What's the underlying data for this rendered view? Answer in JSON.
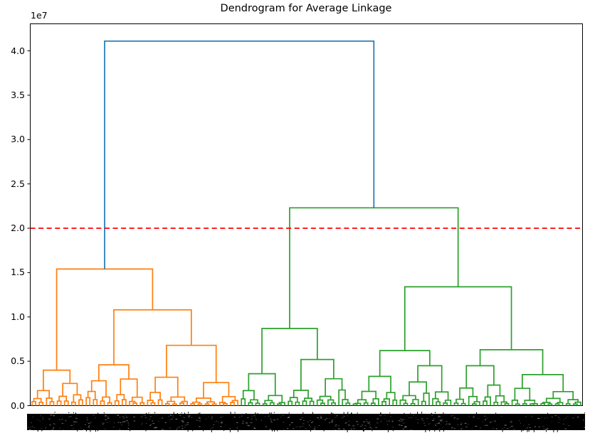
{
  "chart_data": {
    "type": "dendrogram",
    "title": "Dendrogram for Average Linkage",
    "y_axis": {
      "offset_label": "1e7",
      "unit_scale": 10000000,
      "ticks": [
        0.0,
        0.5,
        1.0,
        1.5,
        2.0,
        2.5,
        3.0,
        3.5,
        4.0
      ],
      "tick_labels": [
        "0.0",
        "0.5",
        "1.0",
        "1.5",
        "2.0",
        "2.5",
        "3.0",
        "3.5",
        "4.0"
      ],
      "ylim": [
        0,
        4.305
      ]
    },
    "x_axis": {
      "n_leaves": 153,
      "tick_labels_note": "153 overlapping rotated sample-index labels rendered as an illegible solid black band"
    },
    "threshold_line": {
      "value": 2.0,
      "color": "#ff0000",
      "style": "dashed",
      "linewidth": 1.8
    },
    "colors": {
      "root_link": "#1f77b4",
      "cluster_left": "#ff7f0e",
      "cluster_right": "#2ca02c",
      "axis": "#000000",
      "label_band": "#000000"
    },
    "linkage_heights_note": "merge heights in units of 1e7, read from plot",
    "linkage": {
      "h": 4.11,
      "color": "#1f77b4",
      "children": [
        {
          "h": 1.54,
          "color": "#ff7f0e",
          "children": [
            {
              "h": 0.4,
              "children": [
                {
                  "auto": {
                    "n": 7,
                    "h": 0.17
                  }
                },
                {
                  "auto": {
                    "n": 8,
                    "h": 0.25
                  }
                }
              ]
            },
            {
              "h": 1.08,
              "children": [
                {
                  "h": 0.46,
                  "children": [
                    {
                      "auto": {
                        "n": 8,
                        "h": 0.28
                      }
                    },
                    {
                      "auto": {
                        "n": 9,
                        "h": 0.3
                      }
                    }
                  ]
                },
                {
                  "h": 0.68,
                  "children": [
                    {
                      "auto": {
                        "n": 12,
                        "h": 0.32
                      }
                    },
                    {
                      "auto": {
                        "n": 14,
                        "h": 0.26
                      }
                    }
                  ]
                }
              ]
            }
          ]
        },
        {
          "h": 2.23,
          "color": "#2ca02c",
          "children": [
            {
              "h": 0.87,
              "children": [
                {
                  "auto": {
                    "n": 13,
                    "h": 0.36
                  }
                },
                {
                  "auto": {
                    "n": 18,
                    "h": 0.52
                  }
                }
              ]
            },
            {
              "h": 1.34,
              "children": [
                {
                  "h": 0.62,
                  "children": [
                    {
                      "auto": {
                        "n": 13,
                        "h": 0.33
                      }
                    },
                    {
                      "auto": {
                        "n": 15,
                        "h": 0.45
                      }
                    }
                  ]
                },
                {
                  "h": 0.63,
                  "children": [
                    {
                      "auto": {
                        "n": 16,
                        "h": 0.45
                      }
                    },
                    {
                      "auto": {
                        "n": 20,
                        "h": 0.35
                      }
                    }
                  ]
                }
              ]
            }
          ]
        }
      ]
    },
    "generator": {
      "seed": 11,
      "split_min": 0.35,
      "split_range": 0.3,
      "height_min": 0.3,
      "height_range": 0.32,
      "min_merge_height": 0.018
    }
  }
}
